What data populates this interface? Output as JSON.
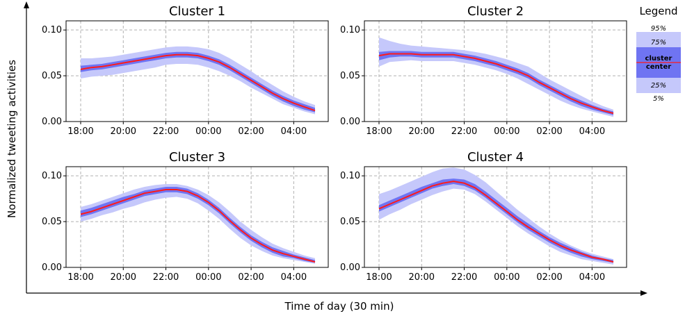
{
  "figure": {
    "xlabel": "Time of day (30 min)",
    "ylabel": "Normalized tweeting activities"
  },
  "legend": {
    "title": "Legend",
    "p95": "95%",
    "p75": "75%",
    "center_line1": "cluster",
    "center_line2": "center",
    "p25": "25%",
    "p5": "5%"
  },
  "colors": {
    "outer_band": "#c5c8fb",
    "inner_band": "#6f74f2",
    "center_line": "#ff1a1a",
    "grid": "#b0b0b0"
  },
  "chart_data": [
    {
      "type": "line",
      "title": "Cluster 1",
      "x_ticks": [
        "18:00",
        "20:00",
        "22:00",
        "00:00",
        "02:00",
        "04:00"
      ],
      "y_ticks": [
        "0.00",
        "0.05",
        "0.10"
      ],
      "ylim": [
        0,
        0.11
      ],
      "grid": true,
      "x_steps": 22,
      "center": [
        0.057,
        0.059,
        0.06,
        0.062,
        0.064,
        0.066,
        0.068,
        0.07,
        0.072,
        0.073,
        0.073,
        0.072,
        0.069,
        0.065,
        0.059,
        0.052,
        0.045,
        0.038,
        0.031,
        0.025,
        0.02,
        0.016,
        0.012
      ],
      "p25": [
        0.054,
        0.056,
        0.057,
        0.059,
        0.061,
        0.063,
        0.065,
        0.067,
        0.069,
        0.07,
        0.07,
        0.069,
        0.066,
        0.062,
        0.056,
        0.049,
        0.042,
        0.035,
        0.028,
        0.022,
        0.017,
        0.013,
        0.01
      ],
      "p75": [
        0.061,
        0.062,
        0.063,
        0.065,
        0.067,
        0.069,
        0.071,
        0.073,
        0.075,
        0.076,
        0.076,
        0.075,
        0.072,
        0.068,
        0.062,
        0.055,
        0.048,
        0.041,
        0.034,
        0.028,
        0.023,
        0.019,
        0.015
      ],
      "p5": [
        0.047,
        0.049,
        0.05,
        0.051,
        0.053,
        0.055,
        0.057,
        0.059,
        0.062,
        0.063,
        0.063,
        0.062,
        0.059,
        0.055,
        0.05,
        0.044,
        0.037,
        0.031,
        0.025,
        0.019,
        0.015,
        0.011,
        0.008
      ],
      "p95": [
        0.069,
        0.069,
        0.07,
        0.071,
        0.073,
        0.075,
        0.077,
        0.079,
        0.081,
        0.082,
        0.082,
        0.081,
        0.079,
        0.075,
        0.069,
        0.062,
        0.055,
        0.047,
        0.04,
        0.033,
        0.027,
        0.022,
        0.018
      ]
    },
    {
      "type": "line",
      "title": "Cluster 2",
      "x_ticks": [
        "18:00",
        "20:00",
        "22:00",
        "00:00",
        "02:00",
        "04:00"
      ],
      "y_ticks": [
        "0.00",
        "0.05",
        "0.10"
      ],
      "ylim": [
        0,
        0.11
      ],
      "grid": true,
      "x_steps": 22,
      "center": [
        0.072,
        0.074,
        0.074,
        0.074,
        0.073,
        0.073,
        0.073,
        0.073,
        0.071,
        0.069,
        0.066,
        0.063,
        0.059,
        0.055,
        0.05,
        0.043,
        0.037,
        0.031,
        0.025,
        0.02,
        0.016,
        0.012,
        0.009
      ],
      "p25": [
        0.067,
        0.07,
        0.071,
        0.071,
        0.07,
        0.07,
        0.07,
        0.07,
        0.068,
        0.066,
        0.063,
        0.06,
        0.056,
        0.052,
        0.047,
        0.04,
        0.034,
        0.028,
        0.022,
        0.017,
        0.013,
        0.01,
        0.007
      ],
      "p75": [
        0.076,
        0.077,
        0.077,
        0.077,
        0.076,
        0.076,
        0.076,
        0.076,
        0.074,
        0.072,
        0.069,
        0.066,
        0.062,
        0.058,
        0.053,
        0.046,
        0.04,
        0.034,
        0.028,
        0.023,
        0.018,
        0.014,
        0.011
      ],
      "p5": [
        0.06,
        0.065,
        0.066,
        0.067,
        0.066,
        0.066,
        0.066,
        0.066,
        0.064,
        0.062,
        0.059,
        0.056,
        0.052,
        0.047,
        0.041,
        0.035,
        0.029,
        0.023,
        0.018,
        0.014,
        0.011,
        0.008,
        0.005
      ],
      "p95": [
        0.092,
        0.088,
        0.085,
        0.083,
        0.082,
        0.081,
        0.08,
        0.079,
        0.078,
        0.076,
        0.074,
        0.071,
        0.068,
        0.064,
        0.06,
        0.053,
        0.046,
        0.04,
        0.034,
        0.028,
        0.022,
        0.017,
        0.013
      ]
    },
    {
      "type": "line",
      "title": "Cluster 3",
      "x_ticks": [
        "18:00",
        "20:00",
        "22:00",
        "00:00",
        "02:00",
        "04:00"
      ],
      "y_ticks": [
        "0.00",
        "0.05",
        "0.10"
      ],
      "ylim": [
        0,
        0.11
      ],
      "grid": true,
      "x_steps": 22,
      "center": [
        0.058,
        0.061,
        0.065,
        0.069,
        0.073,
        0.077,
        0.081,
        0.083,
        0.085,
        0.085,
        0.083,
        0.078,
        0.071,
        0.062,
        0.051,
        0.041,
        0.032,
        0.025,
        0.019,
        0.015,
        0.012,
        0.009,
        0.006
      ],
      "p25": [
        0.055,
        0.058,
        0.062,
        0.066,
        0.07,
        0.074,
        0.078,
        0.08,
        0.082,
        0.082,
        0.08,
        0.075,
        0.068,
        0.059,
        0.048,
        0.038,
        0.029,
        0.022,
        0.016,
        0.012,
        0.01,
        0.007,
        0.005
      ],
      "p75": [
        0.062,
        0.065,
        0.069,
        0.073,
        0.077,
        0.08,
        0.084,
        0.086,
        0.088,
        0.088,
        0.086,
        0.081,
        0.074,
        0.065,
        0.054,
        0.044,
        0.035,
        0.028,
        0.022,
        0.018,
        0.014,
        0.011,
        0.008
      ],
      "p5": [
        0.05,
        0.053,
        0.057,
        0.06,
        0.064,
        0.067,
        0.071,
        0.074,
        0.076,
        0.077,
        0.075,
        0.07,
        0.062,
        0.053,
        0.042,
        0.032,
        0.024,
        0.018,
        0.013,
        0.01,
        0.008,
        0.006,
        0.004
      ],
      "p95": [
        0.066,
        0.069,
        0.073,
        0.077,
        0.081,
        0.085,
        0.088,
        0.09,
        0.091,
        0.091,
        0.089,
        0.085,
        0.079,
        0.071,
        0.061,
        0.05,
        0.041,
        0.033,
        0.026,
        0.021,
        0.017,
        0.013,
        0.01
      ]
    },
    {
      "type": "line",
      "title": "Cluster 4",
      "x_ticks": [
        "18:00",
        "20:00",
        "22:00",
        "00:00",
        "02:00",
        "04:00"
      ],
      "y_ticks": [
        "0.00",
        "0.05",
        "0.10"
      ],
      "ylim": [
        0,
        0.11
      ],
      "grid": true,
      "x_steps": 22,
      "center": [
        0.064,
        0.069,
        0.074,
        0.079,
        0.084,
        0.089,
        0.092,
        0.094,
        0.092,
        0.087,
        0.079,
        0.07,
        0.061,
        0.052,
        0.044,
        0.037,
        0.03,
        0.024,
        0.019,
        0.015,
        0.011,
        0.009,
        0.006
      ],
      "p25": [
        0.061,
        0.066,
        0.071,
        0.076,
        0.081,
        0.086,
        0.089,
        0.091,
        0.089,
        0.084,
        0.076,
        0.067,
        0.058,
        0.049,
        0.041,
        0.034,
        0.027,
        0.021,
        0.016,
        0.012,
        0.009,
        0.007,
        0.005
      ],
      "p75": [
        0.068,
        0.073,
        0.078,
        0.083,
        0.088,
        0.092,
        0.096,
        0.097,
        0.096,
        0.091,
        0.083,
        0.074,
        0.065,
        0.056,
        0.048,
        0.04,
        0.033,
        0.027,
        0.022,
        0.017,
        0.013,
        0.01,
        0.008
      ],
      "p5": [
        0.052,
        0.058,
        0.063,
        0.069,
        0.074,
        0.079,
        0.083,
        0.086,
        0.085,
        0.08,
        0.072,
        0.063,
        0.054,
        0.045,
        0.037,
        0.03,
        0.023,
        0.017,
        0.013,
        0.009,
        0.007,
        0.005,
        0.003
      ],
      "p95": [
        0.08,
        0.084,
        0.089,
        0.094,
        0.099,
        0.104,
        0.108,
        0.109,
        0.107,
        0.101,
        0.093,
        0.083,
        0.073,
        0.063,
        0.054,
        0.045,
        0.037,
        0.03,
        0.024,
        0.019,
        0.015,
        0.012,
        0.009
      ]
    }
  ]
}
